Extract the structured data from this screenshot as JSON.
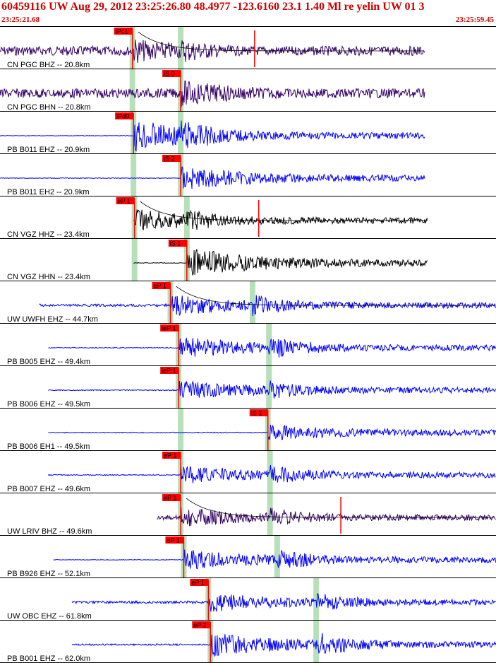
{
  "header": {
    "title": "60459116 UW Aug 29, 2012 23:25:26.80   48.4977 -123.6160 23.1 1.40 Ml re yelin UW 01   3",
    "start_time": "23:25:21.68",
    "end_time": "23:25:59.45"
  },
  "colors": {
    "pick_red": "#ff0000",
    "window_green": "#b8e0b8",
    "trace_blue": "#0000ff",
    "trace_purple": "#330066",
    "trace_black": "#000000",
    "title_red": "#cc0000"
  },
  "traces": [
    {
      "label": "CN PGC BHZ -- 20.8km",
      "color": "purple",
      "pick": "iPc1",
      "pick_time": 12.9,
      "pick2_time": 17.6,
      "data_start": 0.0,
      "data_end": 41.4,
      "amp": 0.3,
      "arrival_amp": 0.55,
      "s_time": 17.6,
      "coda": true,
      "marker_time": 24.8
    },
    {
      "label": "CN PGC BHN -- 20.8km",
      "color": "purple",
      "pick": "iS 0",
      "pick_time": 17.6,
      "pick2_time": 12.9,
      "data_start": 0.0,
      "data_end": 41.4,
      "amp": 0.3,
      "arrival_amp": 0.6,
      "s_time": 17.6
    },
    {
      "label": "PB B011 EHZ -- 20.9km",
      "color": "blue",
      "pick": "iPd0",
      "pick_time": 13.0,
      "pick2_time": 17.6,
      "data_start": 0.0,
      "data_end": 41.4,
      "amp": 0.02,
      "arrival_amp": 0.75,
      "s_time": 17.6
    },
    {
      "label": "PB B011 EH2 -- 20.9km",
      "color": "blue",
      "pick": "iS 2",
      "pick_time": 17.6,
      "pick2_time": 13.0,
      "data_start": 0.0,
      "data_end": 41.4,
      "amp": 0.02,
      "arrival_amp": 0.55,
      "s_time": 17.6
    },
    {
      "label": "CN VGZ HHZ -- 23.4km",
      "color": "black",
      "pick": "eP 1",
      "pick_time": 13.1,
      "pick2_time": 18.2,
      "data_start": 13.0,
      "data_end": 41.7,
      "amp": 0.02,
      "arrival_amp": 0.5,
      "s_time": 18.2,
      "coda": true,
      "marker_time": 25.2
    },
    {
      "label": "CN VGZ HHN -- 23.4km",
      "color": "black",
      "pick": "iS 1",
      "pick_time": 18.2,
      "pick2_time": 13.1,
      "data_start": 13.0,
      "data_end": 41.7,
      "amp": 0.02,
      "arrival_amp": 0.75,
      "s_time": 18.2
    },
    {
      "label": "UW UWFH EHZ -- 44.7km",
      "color": "blue",
      "pick": "eP 1",
      "pick_time": 16.6,
      "pick2_time": 24.6,
      "data_start": 3.8,
      "data_end": 48.3,
      "amp": 0.08,
      "arrival_amp": 0.45,
      "s_time": 24.6,
      "coda": true
    },
    {
      "label": "PB B005 EHZ -- 49.4km",
      "color": "blue",
      "pick": "ieP 1",
      "pick_time": 17.4,
      "pick2_time": 26.2,
      "data_start": 4.7,
      "data_end": 48.6,
      "amp": 0.03,
      "arrival_amp": 0.5,
      "s_time": 26.2
    },
    {
      "label": "PB B006 EHZ -- 49.5km",
      "color": "blue",
      "pick": "ieP 1",
      "pick_time": 17.4,
      "pick2_time": 26.2,
      "data_start": 4.7,
      "data_end": 48.6,
      "amp": 0.03,
      "arrival_amp": 0.4,
      "s_time": 26.2
    },
    {
      "label": "PB B006 EH1 -- 49.5km",
      "color": "blue",
      "pick": "iS 1",
      "pick_time": 26.1,
      "pick2_time": 17.6,
      "data_start": 4.7,
      "data_end": 48.6,
      "amp": 0.03,
      "arrival_amp": 0.3,
      "s_time": 26.1
    },
    {
      "label": "PB B007 EHZ -- 49.6km",
      "color": "blue",
      "pick": "eP 1",
      "pick_time": 17.6,
      "pick2_time": 26.3,
      "data_start": 4.7,
      "data_end": 48.6,
      "amp": 0.03,
      "arrival_amp": 0.4,
      "s_time": 26.3
    },
    {
      "label": "UW LRIV BHZ -- 49.6km",
      "color": "purple",
      "pick": "eP 1",
      "pick_time": 17.6,
      "pick2_time": 26.3,
      "data_start": 15.3,
      "data_end": 48.6,
      "amp": 0.15,
      "arrival_amp": 0.4,
      "s_time": 26.3,
      "coda": true,
      "marker_time": 33.2
    },
    {
      "label": "PB B926 EHZ -- 52.1km",
      "color": "blue",
      "pick": "eP 1",
      "pick_time": 17.9,
      "pick2_time": 27.0,
      "data_start": 5.2,
      "data_end": 48.3,
      "amp": 0.02,
      "arrival_amp": 0.45,
      "s_time": 27.0
    },
    {
      "label": "UW OBC EHZ -- 61.8km",
      "color": "blue",
      "pick": "eP 1",
      "pick_time": 20.3,
      "pick2_time": 30.8,
      "data_start": 7.0,
      "data_end": 49.8,
      "amp": 0.08,
      "arrival_amp": 0.4,
      "s_time": 30.8
    },
    {
      "label": "PB B001 EHZ -- 62.0km",
      "color": "blue",
      "pick": "eP 2",
      "pick_time": 20.5,
      "pick2_time": 30.8,
      "data_start": 7.0,
      "data_end": 49.8,
      "amp": 0.05,
      "arrival_amp": 0.55,
      "s_time": 30.8
    }
  ]
}
